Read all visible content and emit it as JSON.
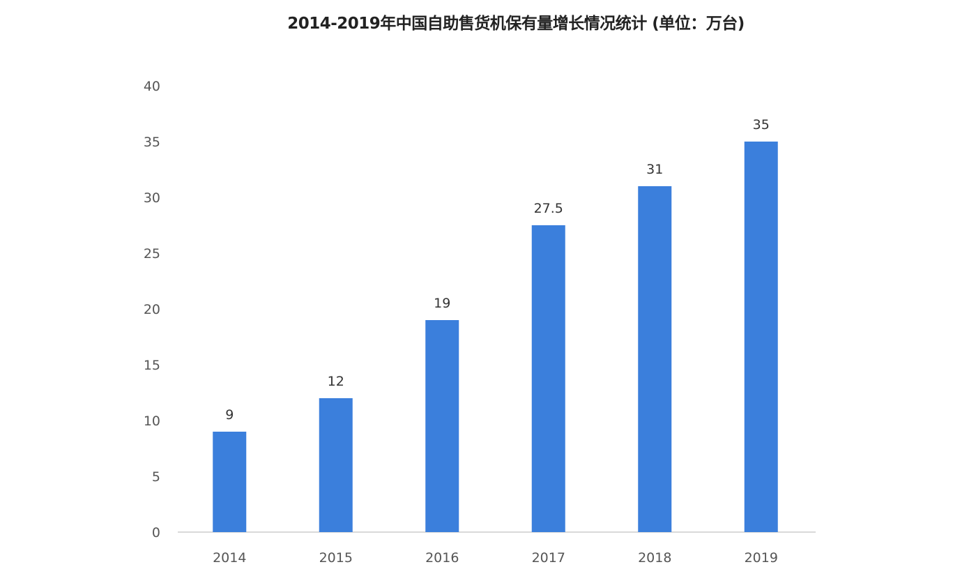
{
  "chart_data": {
    "type": "bar",
    "title": "2014-2019年中国自助售货机保有量增长情况统计 (单位：万台)",
    "xlabel": "",
    "ylabel": "",
    "categories": [
      "2014",
      "2015",
      "2016",
      "2017",
      "2018",
      "2019"
    ],
    "values": [
      9,
      12,
      19,
      27.5,
      31,
      35
    ],
    "ylim": [
      0,
      40
    ],
    "yticks": [
      0,
      5,
      10,
      15,
      20,
      25,
      30,
      35,
      40
    ],
    "grid": false,
    "legend": "none",
    "data_labels": true,
    "colors": {
      "bar": "#3b7fdc",
      "axis": "#d9d9d9"
    }
  }
}
